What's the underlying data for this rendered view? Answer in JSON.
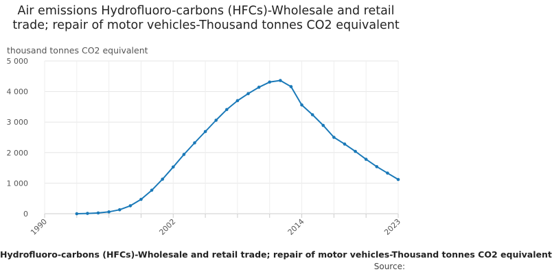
{
  "chart_data": {
    "type": "line",
    "title": "Air emissions Hydrofluoro-carbons (HFCs)-Wholesale and retail trade; repair of motor vehicles-Thousand tonnes CO2 equivalent",
    "ylabel": "thousand tonnes CO2 equivalent",
    "xlabel": "",
    "xlim": [
      1990,
      2023
    ],
    "ylim": [
      0,
      5000
    ],
    "yticks": [
      0,
      1000,
      2000,
      3000,
      4000,
      5000
    ],
    "ytick_labels": [
      "0",
      "1 000",
      "2 000",
      "3 000",
      "4 000",
      "5 000"
    ],
    "xticks": [
      1990,
      2002,
      2014,
      2023
    ],
    "xtick_labels": [
      "1990",
      "2002",
      "2014",
      "2023"
    ],
    "grid": true,
    "color": "#1a79b8",
    "series": [
      {
        "name": "Hydrofluoro-carbons (HFCs)-Wholesale and retail trade; repair of motor vehicles-Thousand tonnes CO2 equivalent",
        "x": [
          1993,
          1994,
          1995,
          1996,
          1997,
          1998,
          1999,
          2000,
          2001,
          2002,
          2003,
          2004,
          2005,
          2006,
          2007,
          2008,
          2009,
          2010,
          2011,
          2012,
          2013,
          2014,
          2015,
          2016,
          2017,
          2018,
          2019,
          2020,
          2021,
          2022,
          2023
        ],
        "y": [
          0,
          10,
          25,
          60,
          130,
          260,
          470,
          770,
          1130,
          1530,
          1940,
          2320,
          2690,
          3060,
          3410,
          3700,
          3930,
          4140,
          4310,
          4360,
          4160,
          3560,
          3240,
          2890,
          2500,
          2280,
          2040,
          1780,
          1540,
          1330,
          1120
        ]
      }
    ]
  },
  "footer": {
    "legend_text": "Hydrofluoro-carbons (HFCs)-Wholesale and retail trade; repair of motor vehicles-Thousand tonnes CO2 equivalent",
    "source_label": "Source:"
  }
}
